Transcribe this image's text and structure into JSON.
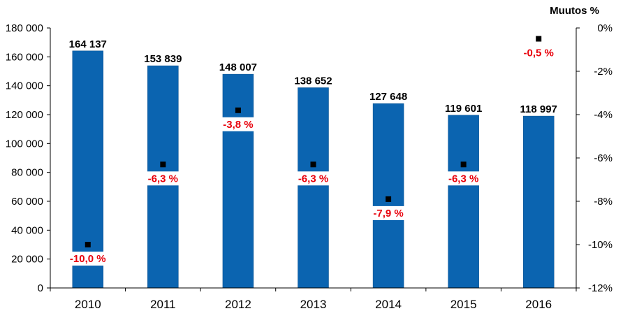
{
  "chart_data": {
    "type": "bar",
    "categories": [
      "2010",
      "2011",
      "2012",
      "2013",
      "2014",
      "2015",
      "2016"
    ],
    "series": [
      {
        "axis": "left",
        "type": "bar",
        "values": [
          164137,
          153839,
          148007,
          138652,
          127648,
          119601,
          118997
        ],
        "labels": [
          "164 137",
          "153 839",
          "148 007",
          "138 652",
          "127 648",
          "119 601",
          "118 997"
        ],
        "color": "#0b64b0"
      },
      {
        "axis": "right",
        "type": "scatter",
        "values": [
          -10.0,
          -6.3,
          -3.8,
          -6.3,
          -7.9,
          -6.3,
          -0.5
        ],
        "labels": [
          "-10,0 %",
          "-6,3 %",
          "-3,8 %",
          "-6,3 %",
          "-7,9 %",
          "-6,3 %",
          "-0,5 %"
        ],
        "color": "#000000",
        "label_color": "#e8000b"
      }
    ],
    "ylim": [
      0,
      180000
    ],
    "yticks": [
      0,
      20000,
      40000,
      60000,
      80000,
      100000,
      120000,
      140000,
      160000,
      180000
    ],
    "ytick_labels": [
      "0",
      "20 000",
      "40 000",
      "60 000",
      "80 000",
      "100 000",
      "120 000",
      "140 000",
      "160 000",
      "180 000"
    ],
    "y2lim": [
      -12,
      0
    ],
    "y2ticks": [
      0,
      -2,
      -4,
      -6,
      -8,
      -10,
      -12
    ],
    "y2tick_labels": [
      "0%",
      "-2%",
      "-4%",
      "-6%",
      "-8%",
      "-10%",
      "-12%"
    ],
    "y2label": "Muutos %",
    "grid": false
  }
}
